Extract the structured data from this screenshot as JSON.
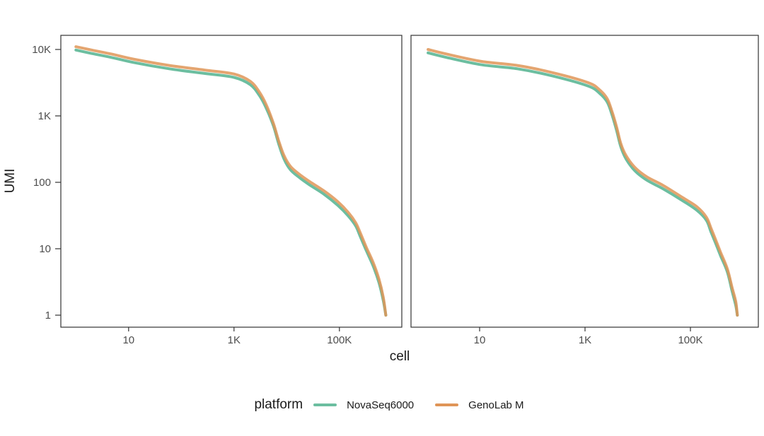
{
  "figure": {
    "x_axis_label": "cell",
    "y_axis_label": "UMI"
  },
  "legend": {
    "title": "platform",
    "entries": [
      {
        "label": "NovaSeq6000",
        "color": "#6cbea0"
      },
      {
        "label": "GenoLab M",
        "color": "#df9557"
      }
    ]
  },
  "axes": {
    "x_ticks": [
      {
        "value": 10,
        "label": "10"
      },
      {
        "value": 1000,
        "label": "1K"
      },
      {
        "value": 100000,
        "label": "100K"
      }
    ],
    "y_ticks": [
      {
        "value": 1,
        "label": "1"
      },
      {
        "value": 10,
        "label": "10"
      },
      {
        "value": 100,
        "label": "100"
      },
      {
        "value": 1000,
        "label": "1K"
      },
      {
        "value": 10000,
        "label": "10K"
      }
    ]
  },
  "colors": {
    "panel_border": "#333333",
    "tick_mark": "#333333",
    "tick_text": "#4d4d4d",
    "axis_title_text": "#1a1a1a"
  },
  "chart_data": [
    {
      "type": "line",
      "panel": "left",
      "x_scale": "log10",
      "y_scale": "log10",
      "xlabel": "cell",
      "ylabel": "UMI",
      "xlim": [
        1,
        1000000
      ],
      "ylim": [
        1,
        16000
      ],
      "grid": false,
      "legend_position": "bottom",
      "series": [
        {
          "name": "NovaSeq6000",
          "color": "#6cbea0",
          "points": [
            [
              1,
              9800
            ],
            [
              2,
              8700
            ],
            [
              4.8,
              7570
            ],
            [
              13,
              6320
            ],
            [
              59,
              5120
            ],
            [
              275,
              4360
            ],
            [
              1000,
              3800
            ],
            [
              2040,
              2950
            ],
            [
              3020,
              2040
            ],
            [
              4070,
              1320
            ],
            [
              5620,
              700
            ],
            [
              7080,
              375
            ],
            [
              8910,
              224
            ],
            [
              11750,
              155
            ],
            [
              17400,
              118
            ],
            [
              27500,
              91
            ],
            [
              51300,
              66
            ],
            [
              93300,
              45
            ],
            [
              148000,
              31
            ],
            [
              204000,
              22
            ],
            [
              251000,
              15
            ],
            [
              324000,
              9.4
            ],
            [
              437000,
              5.5
            ],
            [
              562000,
              3.1
            ],
            [
              676000,
              1.7
            ],
            [
              760000,
              1
            ]
          ]
        },
        {
          "name": "GenoLab M",
          "color": "#df9557",
          "points": [
            [
              1,
              11000
            ],
            [
              2,
              9800
            ],
            [
              4.8,
              8500
            ],
            [
              13,
              7100
            ],
            [
              59,
              5750
            ],
            [
              275,
              4900
            ],
            [
              1000,
              4270
            ],
            [
              2040,
              3310
            ],
            [
              3020,
              2290
            ],
            [
              4070,
              1480
            ],
            [
              5620,
              760
            ],
            [
              7080,
              417
            ],
            [
              8910,
              251
            ],
            [
              11750,
              174
            ],
            [
              17400,
              132
            ],
            [
              27500,
              102
            ],
            [
              51300,
              74
            ],
            [
              93300,
              51
            ],
            [
              148000,
              35
            ],
            [
              204000,
              24.5
            ],
            [
              251000,
              17
            ],
            [
              324000,
              10.5
            ],
            [
              437000,
              6.2
            ],
            [
              562000,
              3.5
            ],
            [
              676000,
              1.9
            ],
            [
              760000,
              1
            ]
          ]
        }
      ]
    },
    {
      "type": "line",
      "panel": "right",
      "x_scale": "log10",
      "y_scale": "log10",
      "xlabel": "cell",
      "ylabel": "UMI",
      "xlim": [
        1,
        1000000
      ],
      "ylim": [
        1,
        16000
      ],
      "grid": false,
      "legend_position": "bottom",
      "series": [
        {
          "name": "NovaSeq6000",
          "color": "#6cbea0",
          "points": [
            [
              1.05,
              8900
            ],
            [
              2.4,
              7570
            ],
            [
              11,
              5870
            ],
            [
              52,
              5120
            ],
            [
              245,
              3980
            ],
            [
              1150,
              2810
            ],
            [
              1900,
              2180
            ],
            [
              2630,
              1620
            ],
            [
              3240,
              1050
            ],
            [
              3980,
              600
            ],
            [
              4790,
              340
            ],
            [
              6030,
              224
            ],
            [
              8910,
              148
            ],
            [
              15100,
              107
            ],
            [
              31000,
              79
            ],
            [
              70800,
              53
            ],
            [
              132000,
              38
            ],
            [
              200000,
              27
            ],
            [
              245000,
              18
            ],
            [
              302000,
              12
            ],
            [
              372000,
              7.9
            ],
            [
              501000,
              4.5
            ],
            [
              617000,
              2.3
            ],
            [
              724000,
              1.4
            ],
            [
              776000,
              1
            ]
          ]
        },
        {
          "name": "GenoLab M",
          "color": "#df9557",
          "points": [
            [
              1.05,
              10000
            ],
            [
              2.4,
              8500
            ],
            [
              11,
              6600
            ],
            [
              52,
              5750
            ],
            [
              245,
              4470
            ],
            [
              1150,
              3160
            ],
            [
              1900,
              2450
            ],
            [
              2630,
              1820
            ],
            [
              3240,
              1175
            ],
            [
              3980,
              675
            ],
            [
              4790,
              380
            ],
            [
              6030,
              251
            ],
            [
              8910,
              166
            ],
            [
              15100,
              120
            ],
            [
              31000,
              89
            ],
            [
              70800,
              59
            ],
            [
              132000,
              43
            ],
            [
              200000,
              30
            ],
            [
              245000,
              20.5
            ],
            [
              302000,
              13.5
            ],
            [
              372000,
              8.9
            ],
            [
              501000,
              5.0
            ],
            [
              617000,
              2.6
            ],
            [
              724000,
              1.6
            ],
            [
              776000,
              1
            ]
          ]
        }
      ]
    }
  ]
}
